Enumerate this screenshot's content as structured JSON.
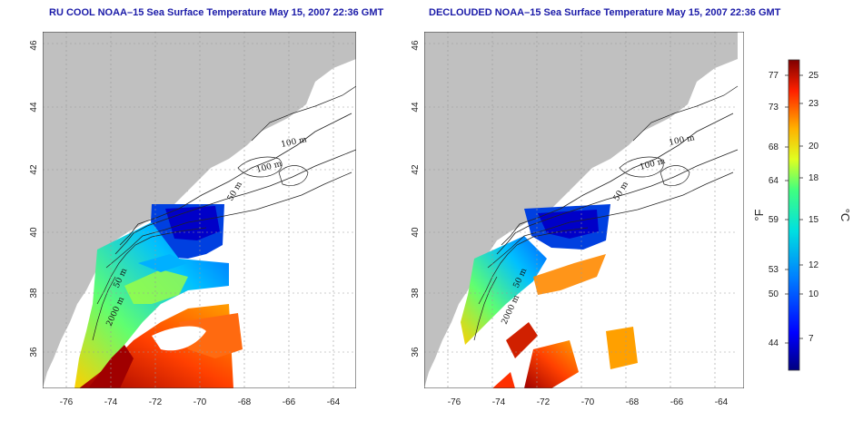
{
  "maps": [
    {
      "title": "RU COOL NOAA–15 Sea Surface Temperature May 15, 2007 22:36 GMT",
      "contour_labels": [
        "100 m",
        "100 m",
        "50 m",
        "50 m",
        "2000 m"
      ]
    },
    {
      "title": "DECLOUDED NOAA–15 Sea Surface Temperature May 15, 2007 22:36 GMT",
      "contour_labels": [
        "100 m",
        "100 m",
        "50 m",
        "50 m",
        "2000 m"
      ]
    }
  ],
  "axes": {
    "lon_ticks": [
      "-76",
      "-74",
      "-72",
      "-70",
      "-68",
      "-66",
      "-64"
    ],
    "lat_ticks": [
      "36",
      "38",
      "40",
      "42",
      "44",
      "46"
    ]
  },
  "colorbar": {
    "fahrenheit_label": "°F",
    "celsius_label": "°C",
    "fahrenheit_ticks": [
      "77",
      "73",
      "68",
      "64",
      "59",
      "53",
      "50",
      "44"
    ],
    "celsius_ticks": [
      "25",
      "23",
      "20",
      "18",
      "15",
      "12",
      "10",
      "7"
    ]
  },
  "colors": {
    "land": "#c0c0c0",
    "ocean": "#ffffff",
    "title": "#1a1aa8",
    "cold": "#0000a0",
    "warm": "#8b0000"
  }
}
